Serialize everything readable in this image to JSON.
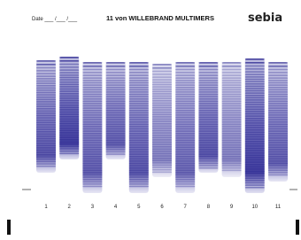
{
  "header": {
    "date_label": "Date ___ /___ /___",
    "title": "11 von WILLEBRAND MULTIMERS",
    "logo": "sebia"
  },
  "lanes": [
    "1",
    "2",
    "3",
    "4",
    "5",
    "6",
    "7",
    "8",
    "9",
    "10",
    "11"
  ]
}
